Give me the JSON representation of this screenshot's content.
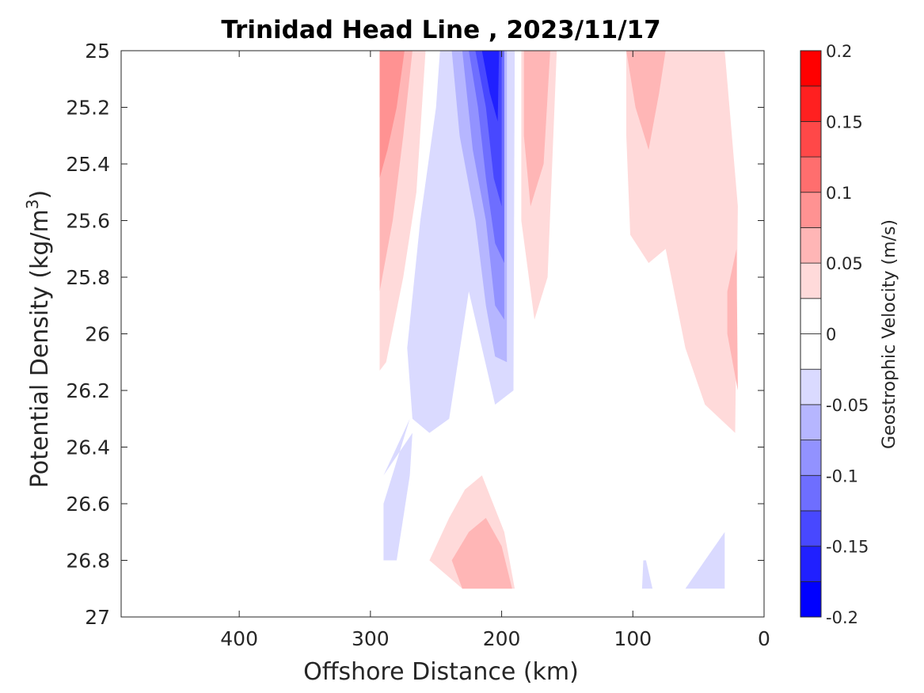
{
  "chart_data": {
    "type": "contour",
    "title": "Trinidad Head Line , 2023/11/17",
    "xlabel": "Offshore Distance (km)",
    "ylabel_main": "Potential Density (kg/m",
    "ylabel_sup": "3",
    "ylabel_close": ")",
    "x_reversed": true,
    "xlim": [
      490,
      0
    ],
    "x_ticks": [
      400,
      300,
      200,
      100,
      0
    ],
    "x_tick_labels": [
      "400",
      "300",
      "200",
      "100",
      "0"
    ],
    "y_reversed": true,
    "ylim": [
      25,
      27
    ],
    "y_ticks": [
      25,
      25.2,
      25.4,
      25.6,
      25.8,
      26,
      26.2,
      26.4,
      26.6,
      26.8,
      27
    ],
    "y_tick_labels": [
      "25",
      "25.2",
      "25.4",
      "25.6",
      "25.8",
      "26",
      "26.2",
      "26.4",
      "26.6",
      "26.8",
      "27"
    ],
    "colorbar": {
      "label": "Geostrophic Velocity (m/s)",
      "range": [
        -0.2,
        0.2
      ],
      "levels": [
        -0.2,
        -0.175,
        -0.15,
        -0.125,
        -0.1,
        -0.075,
        -0.05,
        -0.025,
        0,
        0.025,
        0.05,
        0.075,
        0.1,
        0.125,
        0.15,
        0.175,
        0.2
      ],
      "tick_values": [
        0.2,
        0.15,
        0.1,
        0.05,
        0,
        -0.05,
        -0.1,
        -0.15,
        -0.2
      ],
      "tick_labels": [
        "0.2",
        "0.15",
        "0.1",
        "0.05",
        "0",
        "-0.05",
        "-0.1",
        "-0.15",
        "-0.2"
      ],
      "band_colors": [
        "#0000ff",
        "#2020ff",
        "#4848ff",
        "#6e6eff",
        "#9292ff",
        "#b6b6ff",
        "#dadaff",
        "#ffffff",
        "#ffffff",
        "#ffdada",
        "#ffb6b6",
        "#ff9292",
        "#ff6e6e",
        "#ff4848",
        "#ff2020",
        "#ff0000"
      ]
    },
    "regions": [
      {
        "level": 0.05,
        "color": "#ffdada",
        "points": [
          [
            293,
            25
          ],
          [
            258,
            25
          ],
          [
            265,
            25.5
          ],
          [
            275,
            25.8
          ],
          [
            288,
            26.1
          ],
          [
            293,
            26.13
          ]
        ]
      },
      {
        "level": 0.075,
        "color": "#ffb6b6",
        "points": [
          [
            293,
            25
          ],
          [
            268,
            25
          ],
          [
            275,
            25.3
          ],
          [
            283,
            25.6
          ],
          [
            293,
            25.85
          ]
        ]
      },
      {
        "level": 0.1,
        "color": "#ff9292",
        "points": [
          [
            293,
            25
          ],
          [
            274,
            25
          ],
          [
            280,
            25.2
          ],
          [
            287,
            25.35
          ],
          [
            293,
            25.45
          ]
        ]
      },
      {
        "level": -0.05,
        "color": "#dadaff",
        "points": [
          [
            247,
            25
          ],
          [
            190,
            25
          ],
          [
            191,
            26.2
          ],
          [
            205,
            26.25
          ],
          [
            215,
            26.05
          ],
          [
            225,
            25.85
          ],
          [
            240,
            26.3
          ],
          [
            255,
            26.35
          ],
          [
            268,
            26.3
          ],
          [
            272,
            26.05
          ],
          [
            262,
            25.6
          ],
          [
            250,
            25.2
          ]
        ]
      },
      {
        "level": -0.05,
        "color": "#dadaff",
        "points": [
          [
            290,
            26.5
          ],
          [
            270,
            26.3
          ],
          [
            290,
            26.6
          ],
          [
            290,
            26.8
          ],
          [
            280,
            26.8
          ],
          [
            275,
            26.65
          ],
          [
            270,
            26.5
          ],
          [
            268,
            26.35
          ]
        ]
      },
      {
        "level": -0.075,
        "color": "#b6b6ff",
        "points": [
          [
            238,
            25
          ],
          [
            196,
            25
          ],
          [
            196,
            26.1
          ],
          [
            205,
            26.08
          ],
          [
            212,
            25.9
          ],
          [
            220,
            25.6
          ],
          [
            232,
            25.3
          ]
        ]
      },
      {
        "level": -0.1,
        "color": "#9292ff",
        "points": [
          [
            230,
            25
          ],
          [
            198,
            25
          ],
          [
            198,
            25.95
          ],
          [
            205,
            25.9
          ],
          [
            212,
            25.6
          ],
          [
            222,
            25.35
          ]
        ]
      },
      {
        "level": -0.125,
        "color": "#6e6eff",
        "points": [
          [
            225,
            25
          ],
          [
            198,
            25
          ],
          [
            198,
            25.75
          ],
          [
            205,
            25.68
          ],
          [
            212,
            25.45
          ],
          [
            218,
            25.2
          ]
        ]
      },
      {
        "level": -0.15,
        "color": "#4848ff",
        "points": [
          [
            220,
            25
          ],
          [
            200,
            25
          ],
          [
            200,
            25.55
          ],
          [
            206,
            25.45
          ],
          [
            212,
            25.2
          ]
        ]
      },
      {
        "level": -0.175,
        "color": "#2020ff",
        "points": [
          [
            215,
            25
          ],
          [
            202,
            25
          ],
          [
            203,
            25.25
          ],
          [
            209,
            25.15
          ]
        ]
      },
      {
        "level": 0.05,
        "color": "#ffdada",
        "points": [
          [
            185,
            25
          ],
          [
            158,
            25
          ],
          [
            165,
            25.8
          ],
          [
            175,
            25.95
          ],
          [
            185,
            25.6
          ]
        ]
      },
      {
        "level": 0.075,
        "color": "#ffb6b6",
        "points": [
          [
            183,
            25
          ],
          [
            163,
            25
          ],
          [
            168,
            25.4
          ],
          [
            178,
            25.55
          ],
          [
            183,
            25.3
          ]
        ]
      },
      {
        "level": 0.05,
        "color": "#ffdada",
        "points": [
          [
            105,
            25
          ],
          [
            30,
            25
          ],
          [
            20,
            25.55
          ],
          [
            22,
            26.35
          ],
          [
            45,
            26.25
          ],
          [
            60,
            26.05
          ],
          [
            75,
            25.7
          ],
          [
            88,
            25.75
          ],
          [
            102,
            25.65
          ],
          [
            105,
            25.3
          ]
        ]
      },
      {
        "level": 0.075,
        "color": "#ffb6b6",
        "points": [
          [
            105,
            25
          ],
          [
            75,
            25
          ],
          [
            80,
            25.15
          ],
          [
            88,
            25.35
          ],
          [
            98,
            25.2
          ]
        ]
      },
      {
        "level": 0.075,
        "color": "#ffb6b6",
        "points": [
          [
            28,
            25.85
          ],
          [
            21,
            25.7
          ],
          [
            20,
            26.2
          ],
          [
            28,
            26.0
          ]
        ]
      },
      {
        "level": 0.05,
        "color": "#ffdada",
        "points": [
          [
            255,
            26.8
          ],
          [
            230,
            26.9
          ],
          [
            190,
            26.9
          ],
          [
            198,
            26.7
          ],
          [
            215,
            26.5
          ],
          [
            228,
            26.55
          ],
          [
            240,
            26.65
          ]
        ]
      },
      {
        "level": 0.075,
        "color": "#ffb6b6",
        "points": [
          [
            238,
            26.8
          ],
          [
            230,
            26.9
          ],
          [
            192,
            26.9
          ],
          [
            200,
            26.75
          ],
          [
            212,
            26.65
          ],
          [
            225,
            26.7
          ]
        ]
      },
      {
        "level": -0.05,
        "color": "#dadaff",
        "points": [
          [
            30,
            26.7
          ],
          [
            60,
            26.9
          ],
          [
            30,
            26.9
          ]
        ]
      },
      {
        "level": -0.05,
        "color": "#dadaff",
        "points": [
          [
            92,
            26.8
          ],
          [
            93,
            26.9
          ],
          [
            85,
            26.9
          ],
          [
            90,
            26.8
          ]
        ]
      }
    ]
  }
}
